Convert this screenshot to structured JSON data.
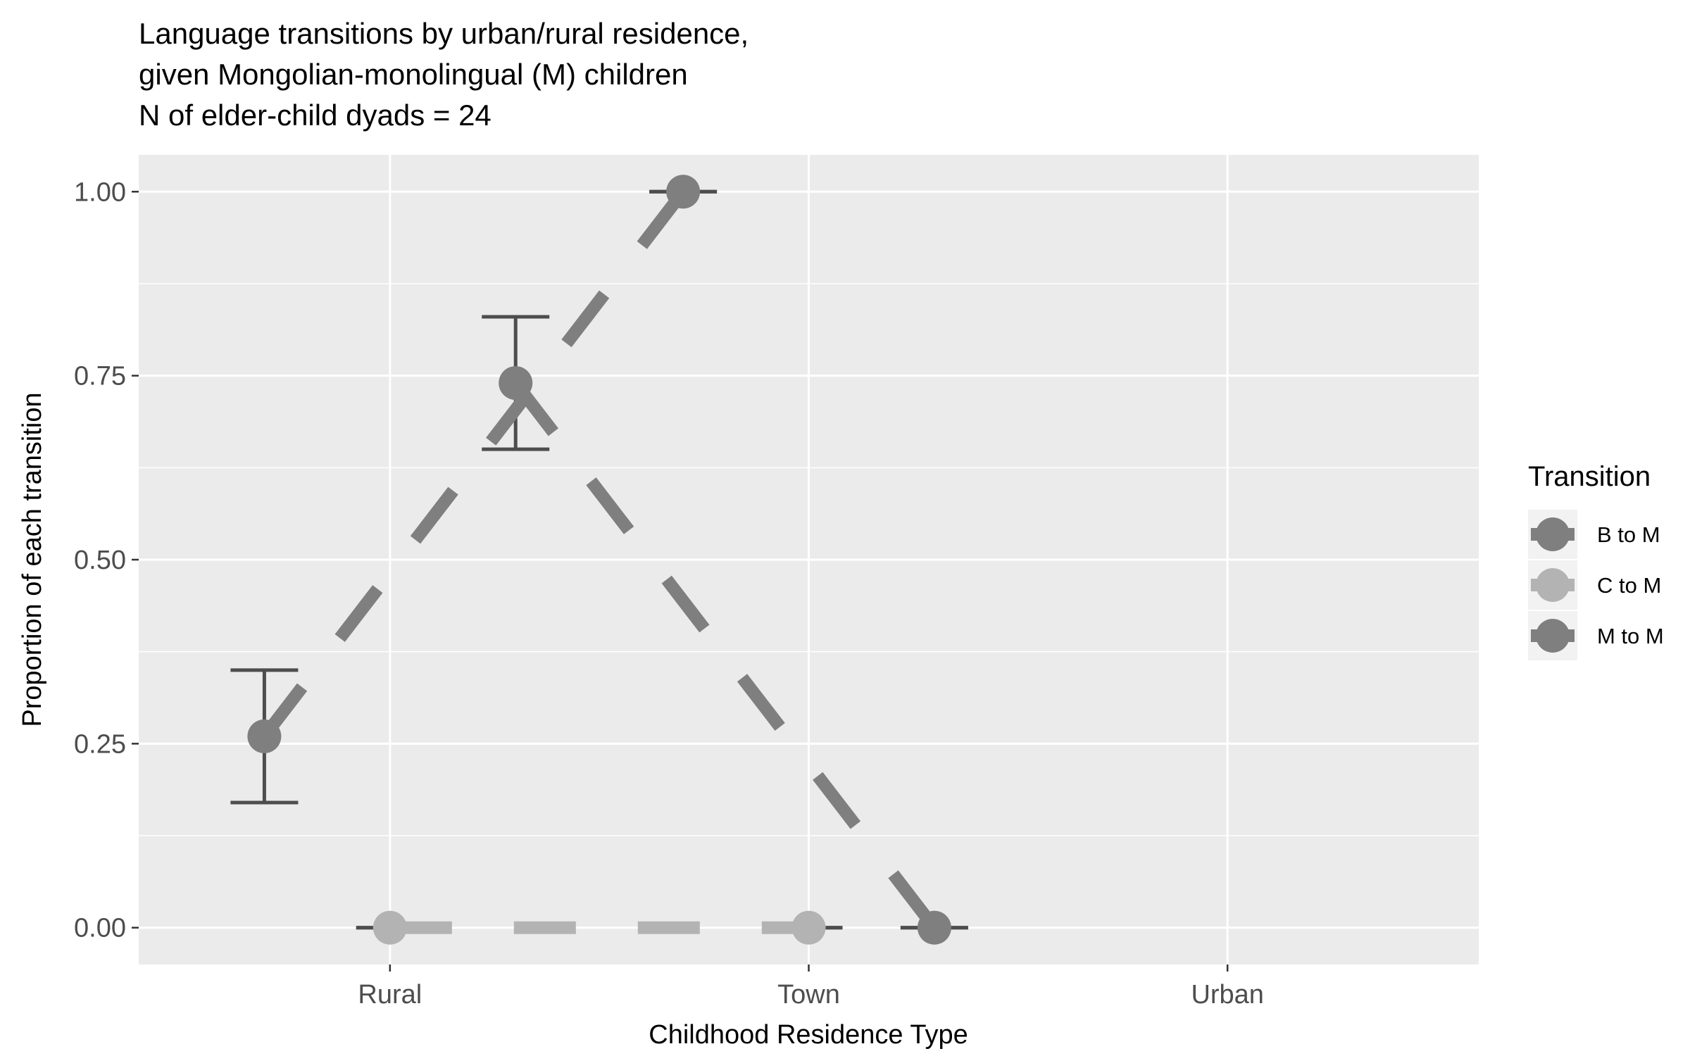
{
  "chart_data": {
    "type": "line",
    "title_lines": [
      "Language transitions by urban/rural residence,",
      "given Mongolian-monolingual (M) children",
      "N of elder-child dyads = 24"
    ],
    "xlabel": "Childhood Residence Type",
    "ylabel": "Proportion of each transition",
    "categories": [
      "Rural",
      "Town",
      "Urban"
    ],
    "ylim": [
      -0.05,
      1.05
    ],
    "yticks": [
      "0.00",
      "0.25",
      "0.50",
      "0.75",
      "1.00"
    ],
    "grid": true,
    "legend": {
      "title": "Transition",
      "placement": "right"
    },
    "series": [
      {
        "name": "B to M",
        "color": "#7f7f7f",
        "points": [
          {
            "category": "Rural",
            "y": 0.26,
            "ymin": 0.17,
            "ymax": 0.35
          },
          {
            "category": "Town",
            "y": 1.0,
            "ymin": 1.0,
            "ymax": 1.0
          }
        ]
      },
      {
        "name": "C to M",
        "color": "#b3b3b3",
        "points": [
          {
            "category": "Rural",
            "y": 0.0,
            "ymin": 0.0,
            "ymax": 0.0
          },
          {
            "category": "Town",
            "y": 0.0,
            "ymin": 0.0,
            "ymax": 0.0
          }
        ]
      },
      {
        "name": "M to M",
        "color": "#7f7f7f",
        "points": [
          {
            "category": "Rural",
            "y": 0.74,
            "ymin": 0.65,
            "ymax": 0.83
          },
          {
            "category": "Town",
            "y": 0.0,
            "ymin": 0.0,
            "ymax": 0.0
          }
        ]
      }
    ]
  }
}
